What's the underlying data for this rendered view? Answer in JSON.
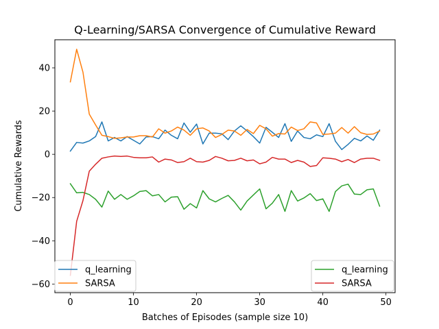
{
  "chart_data": {
    "type": "line",
    "title": "Q-Learning/SARSA Convergence of Cumulative Reward",
    "xlabel": "Batches of Episodes (sample size 10)",
    "ylabel": "Cumulative Rewards",
    "xlim": [
      -2.45,
      51.45
    ],
    "ylim": [
      -64,
      53
    ],
    "xticks": [
      0,
      10,
      20,
      30,
      40,
      50
    ],
    "yticks": [
      -60,
      -40,
      -20,
      0,
      20,
      40
    ],
    "grid": false,
    "legend_placement": [
      "lower-left",
      "lower-right"
    ],
    "x": [
      0,
      1,
      2,
      3,
      4,
      5,
      6,
      7,
      8,
      9,
      10,
      11,
      12,
      13,
      14,
      15,
      16,
      17,
      18,
      19,
      20,
      21,
      22,
      23,
      24,
      25,
      26,
      27,
      28,
      29,
      30,
      31,
      32,
      33,
      34,
      35,
      36,
      37,
      38,
      39,
      40,
      41,
      42,
      43,
      44,
      45,
      46,
      47,
      48,
      49
    ],
    "series": [
      {
        "name": "q_learning",
        "color": "#1f77b4",
        "values": [
          1.5,
          5.5,
          5.2,
          6.2,
          8.2,
          15.0,
          6.2,
          7.8,
          6.2,
          8.2,
          6.5,
          4.8,
          8.0,
          8.2,
          7.2,
          11.2,
          8.8,
          7.2,
          14.5,
          10.2,
          14.0,
          4.8,
          9.8,
          9.8,
          9.5,
          6.8,
          10.8,
          13.2,
          10.8,
          8.2,
          5.2,
          12.5,
          10.2,
          7.8,
          14.2,
          6.0,
          10.8,
          7.8,
          7.2,
          9.0,
          8.2,
          14.2,
          6.0,
          2.2,
          4.6,
          7.4,
          6.2,
          8.5,
          6.5,
          11.2
        ]
      },
      {
        "name": "SARSA",
        "color": "#ff7f0e",
        "values": [
          33.5,
          48.6,
          38.0,
          18.6,
          13.6,
          8.8,
          8.2,
          7.4,
          7.6,
          8.0,
          8.0,
          8.6,
          8.6,
          8.0,
          11.8,
          9.8,
          10.8,
          12.6,
          11.2,
          8.8,
          11.8,
          12.2,
          10.8,
          7.8,
          9.2,
          11.2,
          10.8,
          8.8,
          11.5,
          9.6,
          13.4,
          11.8,
          8.4,
          9.6,
          9.4,
          12.6,
          11.0,
          11.8,
          15.0,
          14.5,
          9.2,
          9.4,
          9.8,
          12.4,
          9.8,
          12.8,
          10.0,
          9.2,
          9.4,
          10.8
        ]
      },
      {
        "name": "q_learning",
        "color": "#2ca02c",
        "values": [
          -13.6,
          -17.8,
          -17.6,
          -18.6,
          -20.8,
          -24.4,
          -17.0,
          -20.8,
          -18.6,
          -20.8,
          -19.2,
          -17.2,
          -16.8,
          -19.2,
          -18.6,
          -22.0,
          -19.8,
          -19.6,
          -25.4,
          -22.8,
          -24.8,
          -16.8,
          -20.6,
          -22.0,
          -20.4,
          -19.0,
          -22.0,
          -25.8,
          -21.6,
          -18.8,
          -16.0,
          -25.2,
          -22.6,
          -18.6,
          -26.4,
          -16.8,
          -21.6,
          -20.2,
          -18.2,
          -21.4,
          -20.6,
          -26.4,
          -17.2,
          -14.6,
          -13.8,
          -18.4,
          -18.6,
          -16.4,
          -16.0,
          -24.0
        ]
      },
      {
        "name": "SARSA",
        "color": "#d62728",
        "values": [
          -56.0,
          -31.0,
          -21.4,
          -7.8,
          -4.6,
          -1.8,
          -1.2,
          -0.8,
          -1.0,
          -0.8,
          -1.4,
          -1.6,
          -1.6,
          -1.2,
          -3.6,
          -2.2,
          -2.6,
          -3.8,
          -3.4,
          -1.8,
          -3.4,
          -3.6,
          -2.8,
          -1.0,
          -1.8,
          -3.0,
          -2.8,
          -1.8,
          -3.0,
          -2.6,
          -4.4,
          -3.6,
          -1.4,
          -2.2,
          -2.2,
          -3.8,
          -2.8,
          -3.6,
          -5.6,
          -5.2,
          -1.6,
          -1.8,
          -2.2,
          -3.4,
          -2.4,
          -3.8,
          -2.2,
          -1.8,
          -1.8,
          -2.8
        ]
      }
    ]
  }
}
